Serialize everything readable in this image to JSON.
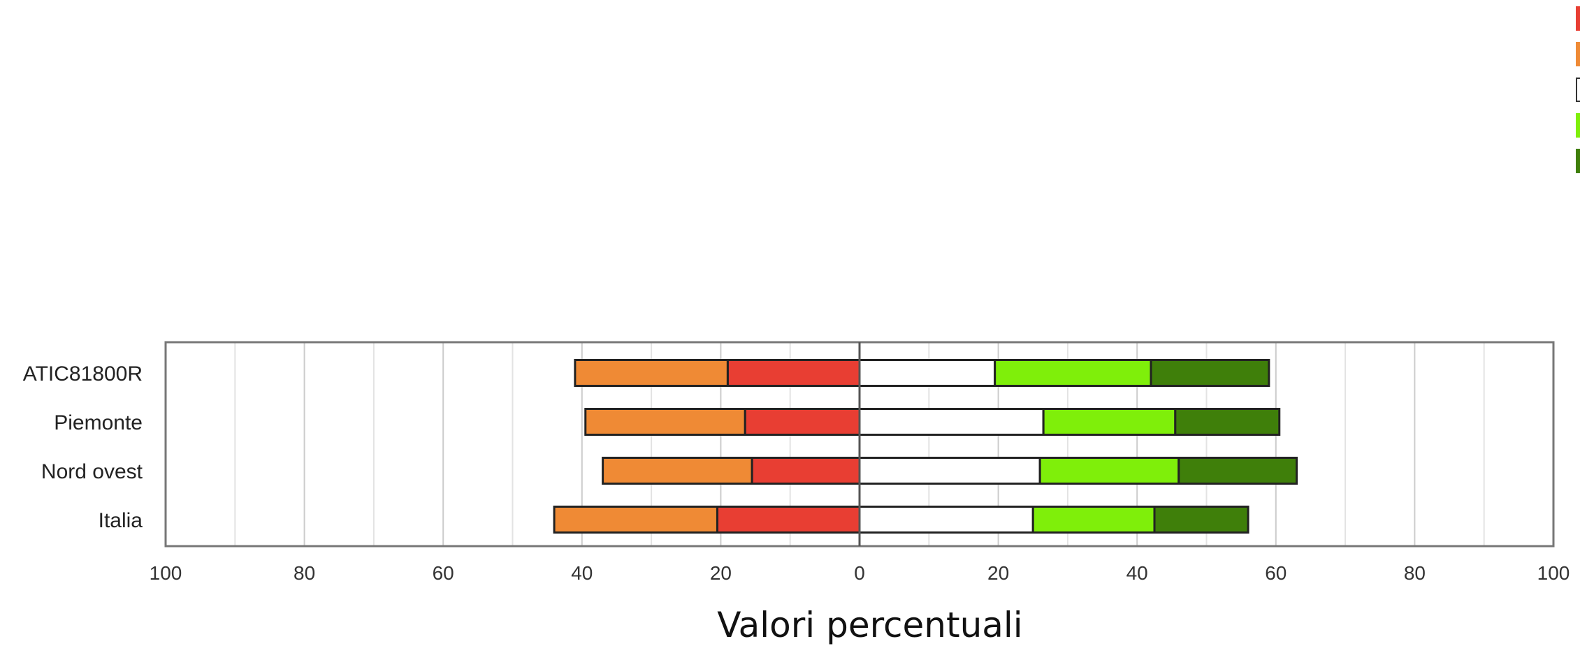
{
  "chart_data": {
    "type": "bar",
    "orientation": "horizontal",
    "stacking": "diverging",
    "categories": [
      "ATIC81800R",
      "Piemonte",
      "Nord ovest",
      "Italia"
    ],
    "series": [
      {
        "side": "negative",
        "color": "#e83e33",
        "values": [
          19,
          16.5,
          15.5,
          20.5
        ]
      },
      {
        "side": "negative",
        "color": "#ef8a35",
        "values": [
          22,
          23,
          21.5,
          23.5
        ]
      },
      {
        "side": "positive",
        "color": "#ffffff",
        "values": [
          19.5,
          26.5,
          26,
          25
        ]
      },
      {
        "side": "positive",
        "color": "#7fef0a",
        "values": [
          22.5,
          19,
          20,
          17.5
        ]
      },
      {
        "side": "positive",
        "color": "#3f7f0a",
        "values": [
          17,
          15,
          17,
          13.5
        ]
      }
    ],
    "xlim": [
      -100,
      100
    ],
    "xticks": [
      -100,
      -80,
      -60,
      -40,
      -20,
      0,
      20,
      40,
      60,
      80,
      100
    ],
    "xtick_labels": [
      "100",
      "80",
      "60",
      "40",
      "20",
      "0",
      "20",
      "40",
      "60",
      "80",
      "100"
    ],
    "xlabel": "Valori percentuali",
    "grid": true,
    "legend_position": "top-right"
  }
}
